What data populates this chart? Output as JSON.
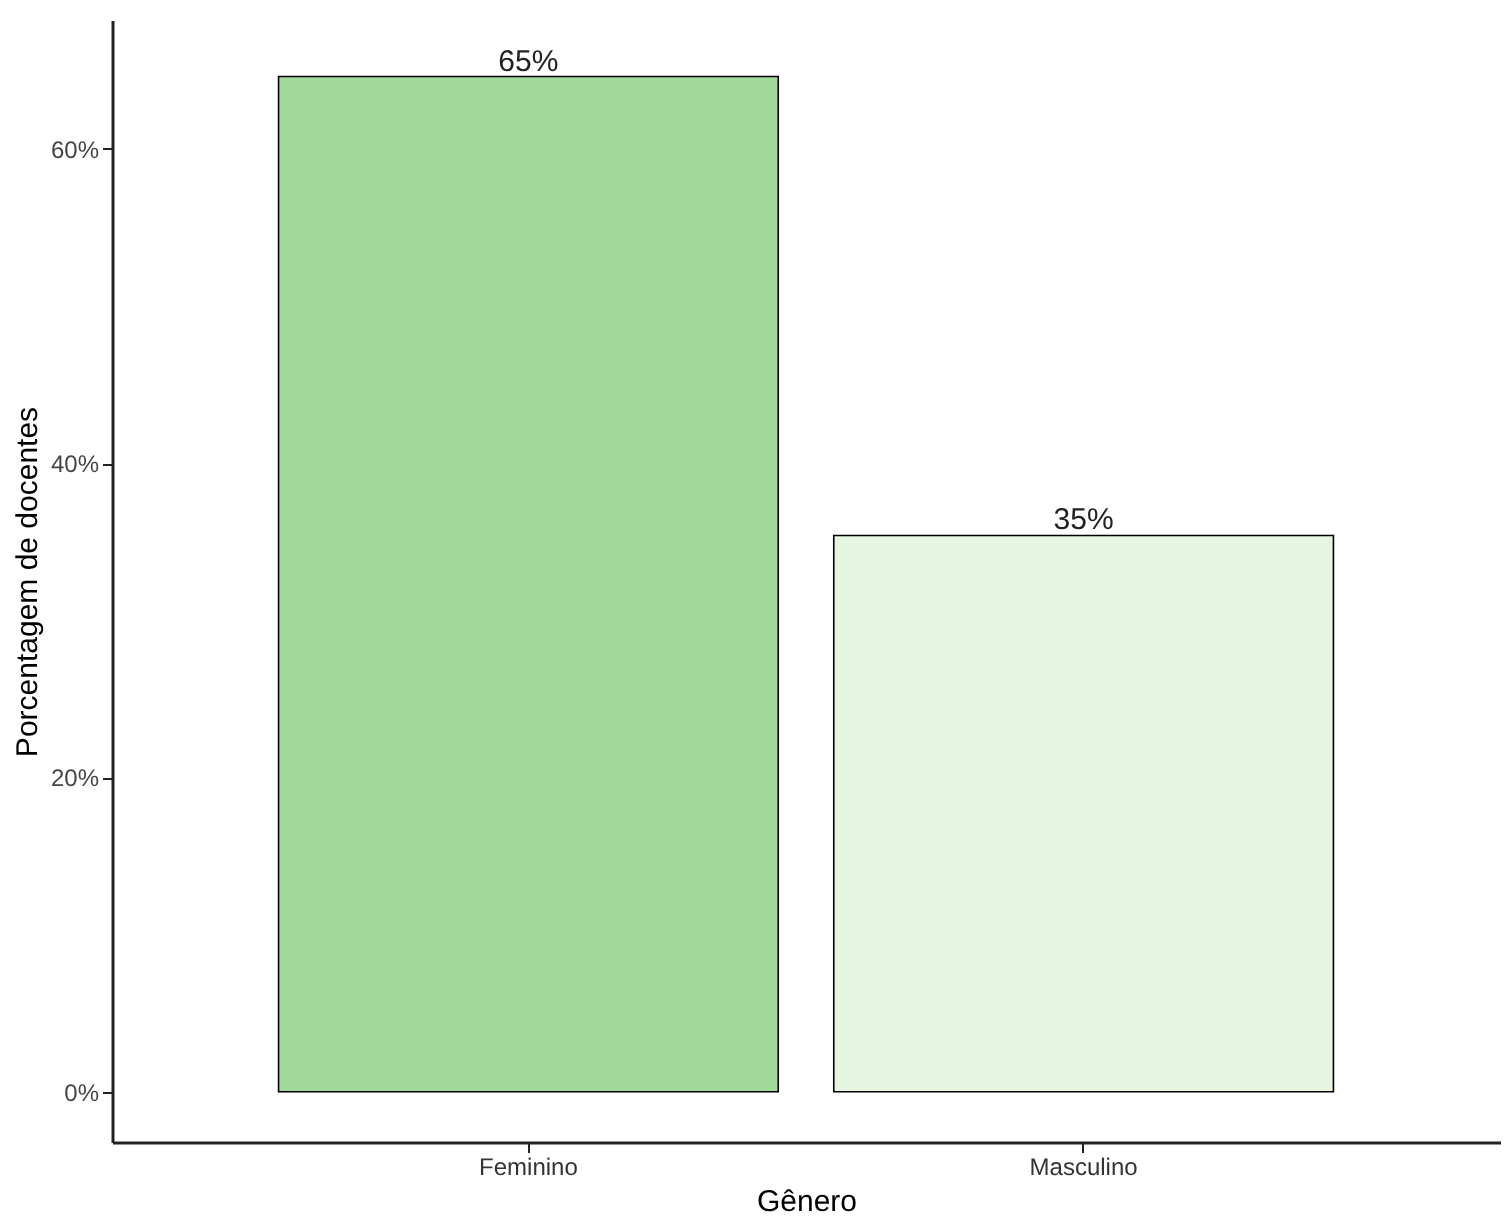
{
  "chart_data": {
    "type": "bar",
    "xlabel": "Gênero",
    "ylabel": "Porcentagem de docentes",
    "categories": [
      "Feminino",
      "Masculino"
    ],
    "values": [
      64.6,
      35.4
    ],
    "colors": [
      "#a1d99b",
      "#e5f5e0"
    ],
    "value_labels": [
      "65%",
      "35%"
    ],
    "ylim": [
      -3.2,
      68.2
    ],
    "yticks": [
      {
        "value": 0,
        "label": "0%"
      },
      {
        "value": 20,
        "label": "20%"
      },
      {
        "value": 40,
        "label": "40%"
      },
      {
        "value": 60,
        "label": "60%"
      }
    ],
    "grid": false
  }
}
